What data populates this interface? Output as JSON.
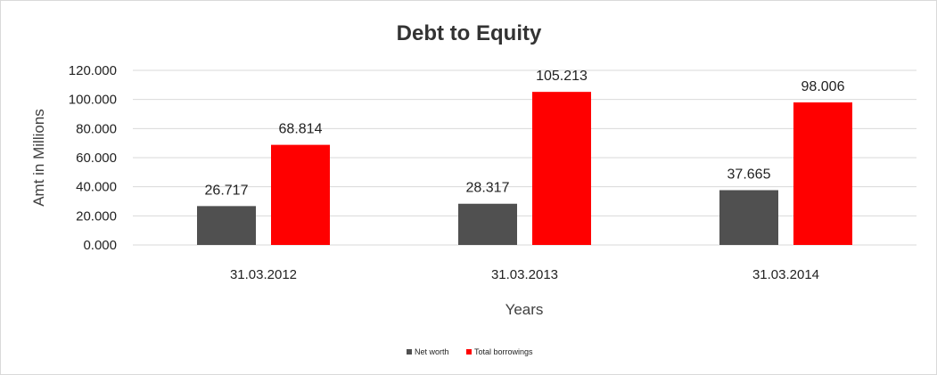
{
  "chart_data": {
    "type": "bar",
    "title": "Debt to Equity",
    "xlabel": "Years",
    "ylabel": "Amt in Millions",
    "categories": [
      "31.03.2012",
      "31.03.2013",
      "31.03.2014"
    ],
    "series": [
      {
        "name": "Net worth",
        "color": "#505050",
        "values": [
          26.717,
          28.317,
          37.665
        ],
        "labels": [
          "26.717",
          "28.317",
          "37.665"
        ]
      },
      {
        "name": "Total borrowings",
        "color": "#ff0000",
        "values": [
          68.814,
          105.213,
          98.006
        ],
        "labels": [
          "68.814",
          "105.213",
          "98.006"
        ]
      }
    ],
    "ylim": [
      0,
      120
    ],
    "yticks": [
      0,
      20,
      40,
      60,
      80,
      100,
      120
    ],
    "ytick_labels": [
      "0.000",
      "20.000",
      "40.000",
      "60.000",
      "80.000",
      "100.000",
      "120.000"
    ],
    "grid": true,
    "legend_position": "bottom"
  }
}
